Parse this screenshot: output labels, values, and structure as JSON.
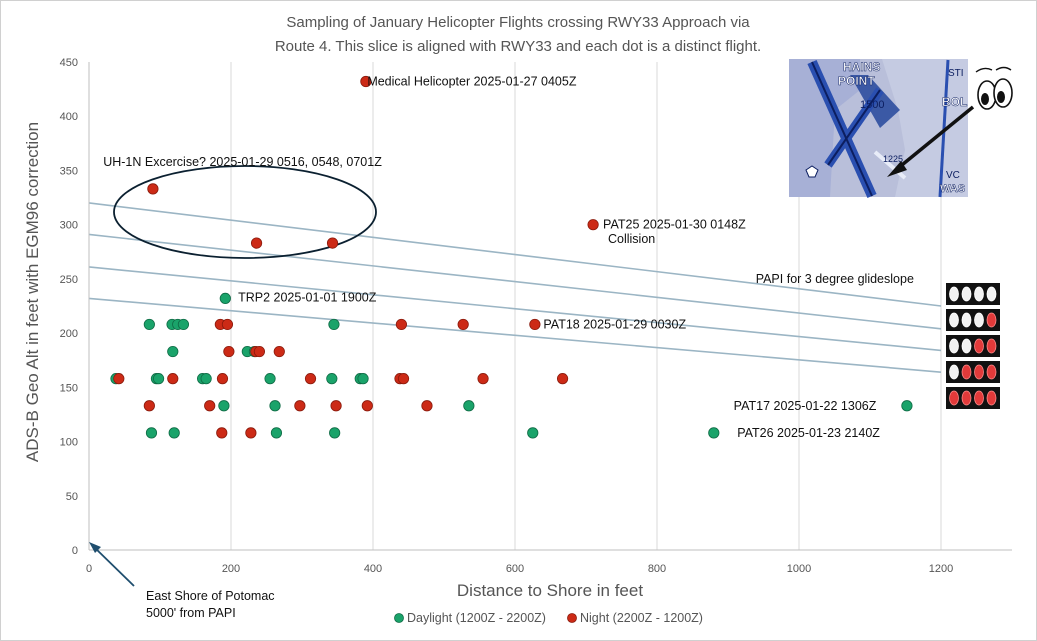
{
  "chart_data": {
    "type": "scatter",
    "title_lines": [
      "Sampling of January Helicopter Flights crossing RWY33 Approach via",
      "Route 4.   This slice is aligned with RWY33 and each dot is a distinct flight."
    ],
    "xlabel": "Distance to Shore in feet",
    "ylabel": "ADS-B Geo Alt  in feet with  EGM96  correction",
    "xlim": [
      0,
      1300
    ],
    "ylim": [
      0,
      450
    ],
    "x_ticks": [
      "0",
      "200",
      "400",
      "600",
      "800",
      "1000",
      "1200"
    ],
    "y_ticks": [
      "0",
      "50",
      "100",
      "150",
      "200",
      "250",
      "300",
      "350",
      "400",
      "450"
    ],
    "grid": "vertical",
    "legend_position": "bottom",
    "series": [
      {
        "name": "Daylight (1200Z - 2200Z)",
        "color": "#1aa36a",
        "points": [
          [
            38,
            158
          ],
          [
            85,
            208
          ],
          [
            88,
            108
          ],
          [
            95,
            158
          ],
          [
            98,
            158
          ],
          [
            117,
            208
          ],
          [
            118,
            183
          ],
          [
            120,
            108
          ],
          [
            125,
            208
          ],
          [
            133,
            208
          ],
          [
            160,
            158
          ],
          [
            165,
            158
          ],
          [
            190,
            133
          ],
          [
            192,
            232
          ],
          [
            223,
            183
          ],
          [
            233,
            183
          ],
          [
            255,
            158
          ],
          [
            262,
            133
          ],
          [
            264,
            108
          ],
          [
            342,
            158
          ],
          [
            345,
            208
          ],
          [
            346,
            108
          ],
          [
            382,
            158
          ],
          [
            386,
            158
          ],
          [
            535,
            133
          ],
          [
            625,
            108
          ],
          [
            880,
            108
          ],
          [
            1152,
            133
          ]
        ]
      },
      {
        "name": "Night (2200Z - 1200Z)",
        "color": "#cc2a16",
        "points": [
          [
            390,
            432
          ],
          [
            90,
            333
          ],
          [
            236,
            283
          ],
          [
            343,
            283
          ],
          [
            710,
            300
          ],
          [
            628,
            208
          ],
          [
            185,
            208
          ],
          [
            195,
            208
          ],
          [
            440,
            208
          ],
          [
            527,
            208
          ],
          [
            42,
            158
          ],
          [
            118,
            158
          ],
          [
            188,
            158
          ],
          [
            312,
            158
          ],
          [
            438,
            158
          ],
          [
            443,
            158
          ],
          [
            555,
            158
          ],
          [
            667,
            158
          ],
          [
            85,
            133
          ],
          [
            170,
            133
          ],
          [
            297,
            133
          ],
          [
            348,
            133
          ],
          [
            392,
            133
          ],
          [
            476,
            133
          ],
          [
            197,
            183
          ],
          [
            235,
            183
          ],
          [
            240,
            183
          ],
          [
            268,
            183
          ],
          [
            187,
            108
          ],
          [
            228,
            108
          ]
        ]
      }
    ],
    "glideslope_lines": [
      {
        "start": [
          0,
          320
        ],
        "end": [
          1200,
          225
        ]
      },
      {
        "start": [
          0,
          291
        ],
        "end": [
          1200,
          204
        ]
      },
      {
        "start": [
          0,
          261
        ],
        "end": [
          1200,
          184
        ]
      },
      {
        "start": [
          0,
          232
        ],
        "end": [
          1200,
          164
        ]
      }
    ],
    "glideslope_color": "#9bb5c4",
    "annotations": [
      {
        "text": "Medical Helicopter 2025-01-27  0405Z",
        "x": 392,
        "y": 432
      },
      {
        "text": "UH-1N Excercise? 2025-01-29  0516, 0548,  0701Z",
        "x": 20,
        "y": 358
      },
      {
        "text": "PAT25 2025-01-30 0148Z",
        "x": 724,
        "y": 300
      },
      {
        "text": "Collision",
        "x": 731,
        "y": 287
      },
      {
        "text": "TRP2 2025-01-01  1900Z",
        "x": 210,
        "y": 233
      },
      {
        "text": "PAT18 2025-01-29  0030Z",
        "x": 640,
        "y": 208
      },
      {
        "text": "PAT17 2025-01-22  1306Z",
        "x": 908,
        "y": 133
      },
      {
        "text": "PAT26 2025-01-23  2140Z",
        "x": 913,
        "y": 108
      },
      {
        "text": "PAPI for 3 degree glideslope",
        "x": 939,
        "y": 250
      }
    ],
    "shore_note_lines": [
      "East Shore of Potomac",
      "5000' from PAPI"
    ],
    "papi_rows": [
      [
        "white",
        "white",
        "white",
        "white"
      ],
      [
        "white",
        "white",
        "white",
        "red"
      ],
      [
        "white",
        "white",
        "red",
        "red"
      ],
      [
        "white",
        "red",
        "red",
        "red"
      ],
      [
        "red",
        "red",
        "red",
        "red"
      ]
    ],
    "map_labels": [
      "HAINS",
      "POINT",
      "1500",
      "BOL",
      "STI",
      "1225",
      "VC",
      "WAS"
    ]
  }
}
